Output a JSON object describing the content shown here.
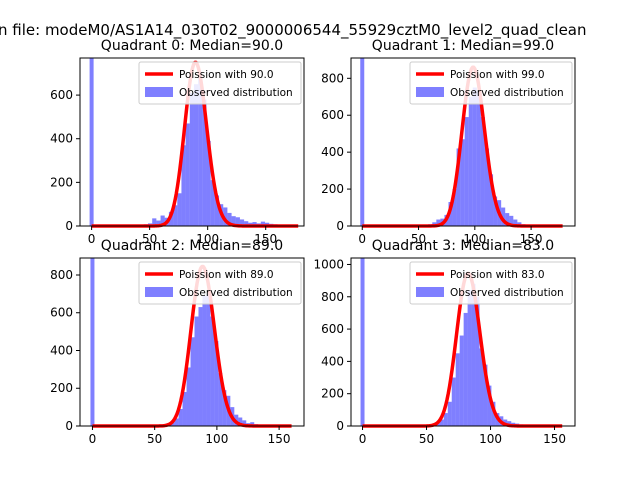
{
  "figure_title": "n file: modeM0/AS1A14_030T02_9000006544_55929cztM0_level2_quad_clean",
  "colors": {
    "observed": "#0000ff",
    "observed_opacity": 0.5,
    "poisson": "#ff0000",
    "axis": "#000000",
    "background": "#ffffff"
  },
  "chart_data": [
    {
      "type": "bar",
      "title": "Quadrant 0: Median=90.0",
      "xlim": [
        -10,
        183
      ],
      "ylim": [
        0,
        770
      ],
      "xticks": [
        0,
        50,
        100,
        150
      ],
      "yticks": [
        0,
        200,
        400,
        600
      ],
      "legend": {
        "placement": "top-right",
        "entries": [
          "Poission with 90.0",
          "Observed distribution"
        ]
      },
      "poisson_mean": 90.0,
      "poisson_scale": 750,
      "poisson_range": [
        0,
        178
      ],
      "observed": {
        "bin_width": 3.6,
        "spikes": [
          {
            "x": 0,
            "height": 770
          }
        ],
        "bins": [
          [
            45,
            8
          ],
          [
            48.6,
            12
          ],
          [
            52.2,
            35
          ],
          [
            55.8,
            25
          ],
          [
            59.4,
            48
          ],
          [
            63,
            38
          ],
          [
            66.6,
            65
          ],
          [
            70.2,
            95
          ],
          [
            73.8,
            150
          ],
          [
            77.4,
            370
          ],
          [
            81,
            470
          ],
          [
            84.6,
            610
          ],
          [
            88.2,
            650
          ],
          [
            91.8,
            680
          ],
          [
            95.4,
            580
          ],
          [
            99,
            390
          ],
          [
            102.6,
            210
          ],
          [
            106.2,
            140
          ],
          [
            109.8,
            100
          ],
          [
            113.4,
            85
          ],
          [
            117,
            60
          ],
          [
            120.6,
            45
          ],
          [
            124.2,
            40
          ],
          [
            127.8,
            30
          ],
          [
            131.4,
            22
          ],
          [
            135,
            15
          ],
          [
            138.6,
            18
          ],
          [
            142.2,
            12
          ],
          [
            145.8,
            20
          ],
          [
            149.4,
            15
          ],
          [
            153,
            10
          ],
          [
            156.6,
            8
          ],
          [
            160.2,
            5
          ]
        ]
      }
    },
    {
      "type": "bar",
      "title": "Quadrant 1: Median=99.0",
      "xlim": [
        -10,
        189
      ],
      "ylim": [
        0,
        910
      ],
      "xticks": [
        0,
        50,
        100,
        150
      ],
      "yticks": [
        0,
        200,
        400,
        600,
        800
      ],
      "legend": {
        "placement": "top-right",
        "entries": [
          "Poission with 99.0",
          "Observed distribution"
        ]
      },
      "poisson_mean": 99.0,
      "poisson_scale": 860,
      "poisson_range": [
        0,
        178
      ],
      "observed": {
        "bin_width": 3.6,
        "spikes": [
          {
            "x": 0,
            "height": 910
          }
        ],
        "bins": [
          [
            55,
            5
          ],
          [
            58.6,
            10
          ],
          [
            62.2,
            20
          ],
          [
            65.8,
            35
          ],
          [
            69.4,
            40
          ],
          [
            73,
            60
          ],
          [
            76.6,
            130
          ],
          [
            80.2,
            200
          ],
          [
            83.8,
            420
          ],
          [
            87.4,
            470
          ],
          [
            91,
            590
          ],
          [
            94.6,
            700
          ],
          [
            98.2,
            750
          ],
          [
            101.8,
            730
          ],
          [
            105.4,
            590
          ],
          [
            109,
            420
          ],
          [
            112.6,
            280
          ],
          [
            116.2,
            160
          ],
          [
            119.8,
            140
          ],
          [
            123.4,
            100
          ],
          [
            127,
            70
          ],
          [
            130.6,
            55
          ],
          [
            134.2,
            35
          ],
          [
            137.8,
            20
          ],
          [
            141.4,
            10
          ],
          [
            145,
            8
          ],
          [
            148.6,
            5
          ]
        ]
      }
    },
    {
      "type": "bar",
      "title": "Quadrant 2: Median=89.0",
      "xlim": [
        -10,
        170
      ],
      "ylim": [
        0,
        890
      ],
      "xticks": [
        0,
        50,
        100,
        150
      ],
      "yticks": [
        0,
        200,
        400,
        600,
        800
      ],
      "legend": {
        "placement": "top-right",
        "entries": [
          "Poission with 89.0",
          "Observed distribution"
        ]
      },
      "poisson_mean": 89.0,
      "poisson_scale": 845,
      "poisson_range": [
        0,
        160
      ],
      "observed": {
        "bin_width": 3.2,
        "spikes": [
          {
            "x": 0,
            "height": 890
          }
        ],
        "bins": [
          [
            50,
            5
          ],
          [
            53.2,
            8
          ],
          [
            56.4,
            10
          ],
          [
            59.6,
            15
          ],
          [
            62.8,
            20
          ],
          [
            66,
            40
          ],
          [
            69.2,
            90
          ],
          [
            72.4,
            180
          ],
          [
            75.6,
            310
          ],
          [
            78.8,
            470
          ],
          [
            82,
            580
          ],
          [
            85.2,
            630
          ],
          [
            88.4,
            690
          ],
          [
            91.6,
            700
          ],
          [
            94.8,
            580
          ],
          [
            98,
            450
          ],
          [
            101.2,
            280
          ],
          [
            104.4,
            190
          ],
          [
            107.6,
            160
          ],
          [
            110.8,
            100
          ],
          [
            114,
            60
          ],
          [
            117.2,
            45
          ],
          [
            120.4,
            30
          ],
          [
            123.6,
            15
          ],
          [
            126.8,
            20
          ],
          [
            130,
            10
          ]
        ]
      }
    },
    {
      "type": "bar",
      "title": "Quadrant 3: Median=83.0",
      "xlim": [
        -9,
        166
      ],
      "ylim": [
        0,
        1040
      ],
      "xticks": [
        0,
        50,
        100,
        150
      ],
      "yticks": [
        0,
        200,
        400,
        600,
        800,
        1000
      ],
      "legend": {
        "placement": "top-right",
        "entries": [
          "Poission with 83.0",
          "Observed distribution"
        ]
      },
      "poisson_mean": 83.0,
      "poisson_scale": 945,
      "poisson_range": [
        0,
        156
      ],
      "observed": {
        "bin_width": 3.1,
        "spikes": [
          {
            "x": 0,
            "height": 1040
          }
        ],
        "bins": [
          [
            48,
            5
          ],
          [
            51.1,
            8
          ],
          [
            54.2,
            12
          ],
          [
            57.3,
            20
          ],
          [
            60.4,
            40
          ],
          [
            63.5,
            80
          ],
          [
            66.6,
            150
          ],
          [
            69.7,
            300
          ],
          [
            72.8,
            450
          ],
          [
            75.9,
            560
          ],
          [
            79,
            700
          ],
          [
            82.1,
            840
          ],
          [
            85.2,
            880
          ],
          [
            88.3,
            800
          ],
          [
            91.4,
            480
          ],
          [
            94.5,
            380
          ],
          [
            97.6,
            250
          ],
          [
            100.7,
            150
          ],
          [
            103.8,
            80
          ],
          [
            106.9,
            60
          ],
          [
            110,
            40
          ],
          [
            113.1,
            30
          ],
          [
            116.2,
            20
          ],
          [
            119.3,
            15
          ],
          [
            122.4,
            10
          ],
          [
            125.5,
            5
          ]
        ]
      }
    }
  ]
}
